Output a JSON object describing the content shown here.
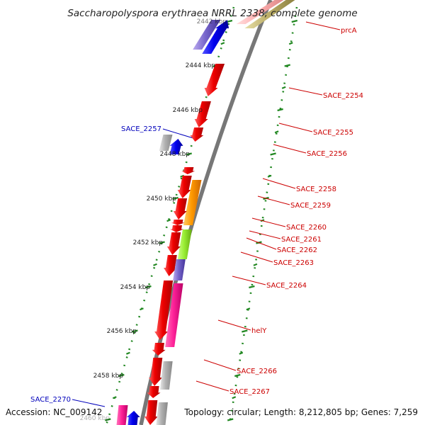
{
  "title": "Saccharopolyspora erythraea NRRL 2338, complete genome",
  "footer": {
    "accession": "Accession: NC_009142",
    "summary": "Topology: circular; Length: 8,212,805 bp; Genes: 7,259"
  },
  "scale_labels": [
    "2442 kbp",
    "2444 kbp",
    "2446 kbp",
    "2448 kbp",
    "2450 kbp",
    "2452 kbp",
    "2454 kbp",
    "2456 kbp",
    "2458 kbp",
    "2460 kbp"
  ],
  "forward_labels": [
    "prcA",
    "SACE_2254",
    "SACE_2255",
    "SACE_2256",
    "SACE_2258",
    "SACE_2259",
    "SACE_2260",
    "SACE_2261",
    "SACE_2262",
    "SACE_2263",
    "SACE_2264",
    "helY",
    "SACE_2266",
    "SACE_2267"
  ],
  "reverse_labels": [
    "SACE_2257",
    "SACE_2270"
  ],
  "colors": {
    "forward_label": "#cc0000",
    "reverse_label": "#0000bb",
    "cds_red": "#ee0000",
    "orange": "#ff9900",
    "lime": "#99ee33",
    "magenta": "#ff2299",
    "blue": "#0000ee",
    "purple": "#7766cc",
    "gray": "#b0b0b0",
    "olive": "#bdb06a",
    "pink": "#ffb0b0",
    "ticks": "#228822",
    "backbone": "#777777"
  }
}
